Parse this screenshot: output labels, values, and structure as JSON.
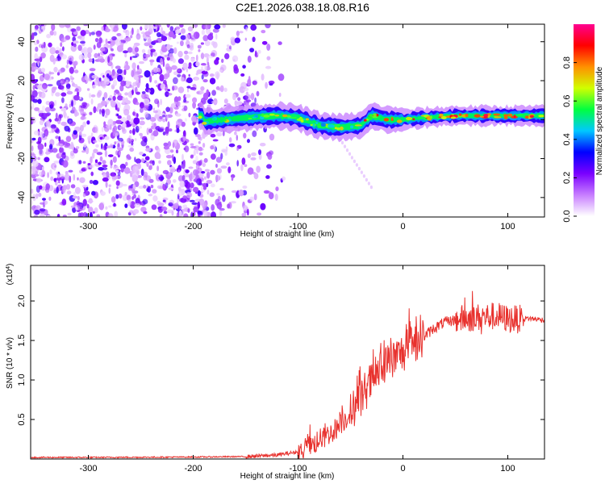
{
  "title": "C2E1.2026.038.18.08.R16",
  "colors": {
    "axis": "#000000",
    "snr_line": "#e8322e",
    "background": "#ffffff"
  },
  "chart_data": [
    {
      "type": "heatmap",
      "title": "C2E1.2026.038.18.08.R16",
      "xlabel": "Height of straight line (km)",
      "ylabel": "Frequency (Hz)",
      "xlim": [
        -355,
        135
      ],
      "ylim": [
        -50,
        49
      ],
      "x_ticks": [
        -300,
        -200,
        -100,
        0,
        100
      ],
      "x_tick_labels": [
        "-300",
        "-200",
        "-100",
        "0",
        "100"
      ],
      "y_ticks": [
        -40,
        -20,
        0,
        20,
        40
      ],
      "y_tick_labels": [
        "-40",
        "-20",
        "0",
        "20",
        "40"
      ],
      "colorbar": {
        "label": "Normalized spectral amplitude",
        "range": [
          0,
          1
        ],
        "ticks": [
          0.0,
          0.2,
          0.4,
          0.6,
          0.8
        ],
        "tick_labels": [
          "0.0",
          "0.2",
          "0.4",
          "0.6",
          "0.8"
        ],
        "colormap": [
          "#ffffff",
          "#c77dff",
          "#7a00ff",
          "#0000ff",
          "#00c8ff",
          "#00ff40",
          "#d0ff00",
          "#ff9000",
          "#ff0000",
          "#ff0090"
        ]
      },
      "features": {
        "noise_region_x": [
          -355,
          -110
        ],
        "dense_noise_until_x": -195,
        "signal_band_x": [
          -195,
          135
        ],
        "signal_band_center_freq": 0,
        "signal_trace": [
          {
            "x": -190,
            "y": -1
          },
          {
            "x": -170,
            "y": 0
          },
          {
            "x": -150,
            "y": 1
          },
          {
            "x": -120,
            "y": 2
          },
          {
            "x": -100,
            "y": 1
          },
          {
            "x": -80,
            "y": -3
          },
          {
            "x": -60,
            "y": -4
          },
          {
            "x": -40,
            "y": -3
          },
          {
            "x": -30,
            "y": 2
          },
          {
            "x": -15,
            "y": 0
          },
          {
            "x": 0,
            "y": 0
          },
          {
            "x": 20,
            "y": 1
          },
          {
            "x": 50,
            "y": 2
          },
          {
            "x": 80,
            "y": 2
          },
          {
            "x": 100,
            "y": 2
          },
          {
            "x": 135,
            "y": 2
          }
        ]
      }
    },
    {
      "type": "line",
      "xlabel": "Height of straight line (km)",
      "ylabel": "SNR (10 * v/v)",
      "y_multiplier_label": "(x10",
      "y_multiplier_exp": "4",
      "xlim": [
        -355,
        135
      ],
      "ylim": [
        0,
        24500
      ],
      "x_ticks": [
        -300,
        -200,
        -100,
        0,
        100
      ],
      "x_tick_labels": [
        "-300",
        "-200",
        "-100",
        "0",
        "100"
      ],
      "y_ticks": [
        5000,
        10000,
        15000,
        20000
      ],
      "y_tick_labels": [
        "0.5",
        "1.0",
        "1.5",
        "2.0"
      ],
      "series": [
        {
          "x": [
            -355,
            -300,
            -250,
            -200,
            -150,
            -120,
            -100,
            -90,
            -80,
            -70,
            -60,
            -50,
            -40,
            -30,
            -20,
            -10,
            0,
            10,
            20,
            30,
            40,
            50,
            60,
            70,
            80,
            90,
            100,
            110,
            120,
            135
          ],
          "y": [
            200,
            200,
            220,
            250,
            300,
            500,
            900,
            1500,
            2300,
            3200,
            4300,
            5800,
            7800,
            9800,
            11500,
            12500,
            13500,
            14500,
            15500,
            16600,
            17300,
            17600,
            17800,
            17900,
            18000,
            18100,
            17700,
            17700,
            17800,
            17600
          ]
        }
      ]
    }
  ]
}
